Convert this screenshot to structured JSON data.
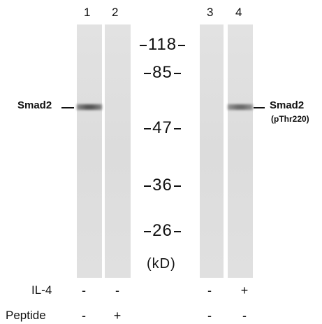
{
  "lanes": [
    "1",
    "2",
    "3",
    "4"
  ],
  "markers": [
    "118",
    "85",
    "47",
    "36",
    "26"
  ],
  "unit": "(kD)",
  "left_label": "Smad2",
  "right_label": {
    "name": "Smad2",
    "detail": "(pThr220)"
  },
  "conditions": [
    {
      "name": "IL-4",
      "values": [
        "-",
        "-",
        "-",
        "+"
      ]
    },
    {
      "name": "Peptide",
      "values": [
        "-",
        "+",
        "-",
        "-"
      ]
    }
  ]
}
